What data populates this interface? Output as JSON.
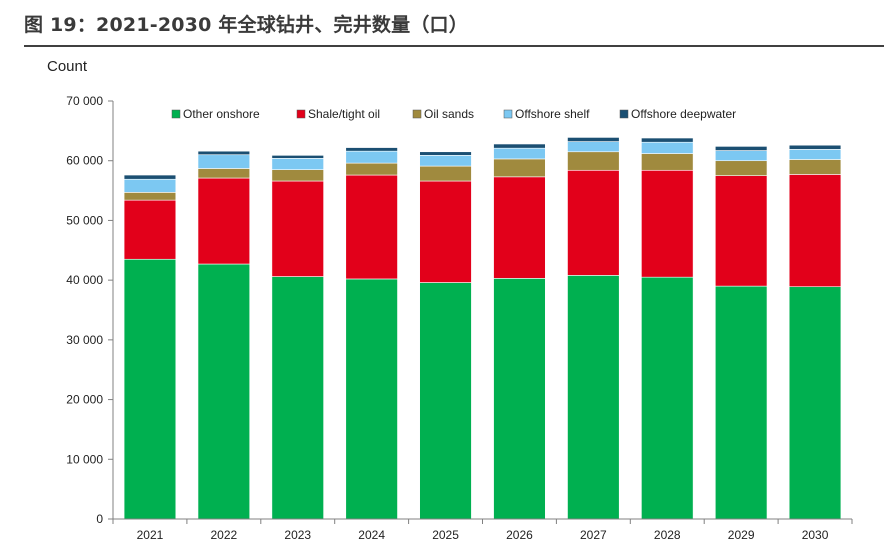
{
  "figure_title": "图 19：2021-2030 年全球钻井、完井数量（口）",
  "chart_data": {
    "type": "bar",
    "stacked": true,
    "title": "",
    "ylabel": "Count",
    "xlabel": "",
    "ylim": [
      0,
      70000
    ],
    "yticks": [
      0,
      10000,
      20000,
      30000,
      40000,
      50000,
      60000,
      70000
    ],
    "ytick_labels": [
      "0",
      "10 000",
      "20 000",
      "30 000",
      "40 000",
      "50 000",
      "60 000",
      "70 000"
    ],
    "legend_position": "top",
    "grid": "none",
    "categories": [
      "2021",
      "2022",
      "2023",
      "2024",
      "2025",
      "2026",
      "2027",
      "2028",
      "2029",
      "2030"
    ],
    "series": [
      {
        "name": "Other onshore",
        "color": "#00b050",
        "values": [
          43500,
          42700,
          40600,
          40200,
          39600,
          40300,
          40800,
          40500,
          39000,
          38900
        ]
      },
      {
        "name": "Shale/tight oil",
        "color": "#e2001a",
        "values": [
          9900,
          14400,
          16000,
          17400,
          17000,
          17000,
          17600,
          17900,
          18500,
          18800
        ]
      },
      {
        "name": "Oil sands",
        "color": "#a08a3e",
        "values": [
          1300,
          1600,
          1900,
          2000,
          2500,
          3000,
          3100,
          2800,
          2500,
          2500
        ]
      },
      {
        "name": "Offshore shelf",
        "color": "#7cc8f2",
        "values": [
          2200,
          2300,
          1900,
          2000,
          1800,
          1800,
          1700,
          1900,
          1700,
          1700
        ]
      },
      {
        "name": "Offshore deepwater",
        "color": "#1b4f72",
        "values": [
          700,
          600,
          500,
          600,
          600,
          700,
          700,
          700,
          700,
          700
        ]
      }
    ]
  }
}
